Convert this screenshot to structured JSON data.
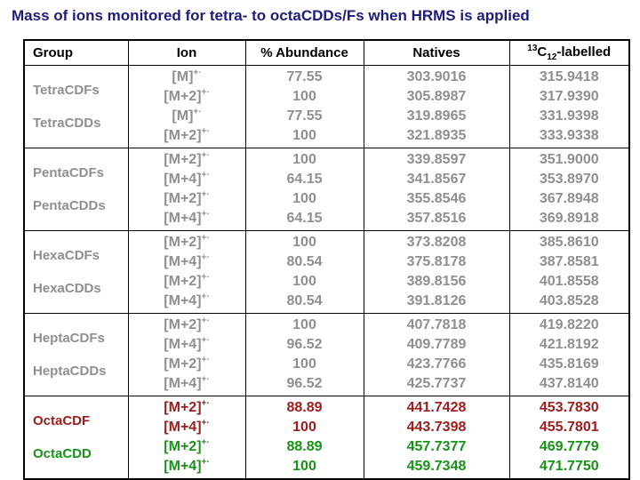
{
  "slide": {
    "title": "Mass of ions monitored for tetra- to octaCDDs/Fs when HRMS is applied"
  },
  "colors": {
    "title": "#1e1e7a",
    "header_text": "#000000",
    "border": "#000000",
    "background": "#ffffff",
    "gray": "#8f8f8f",
    "red": "#9e1b1b",
    "green": "#169416"
  },
  "table": {
    "headers": [
      {
        "align": "left",
        "parts": [
          {
            "t": "Group"
          }
        ]
      },
      {
        "align": "center",
        "parts": [
          {
            "t": "Ion"
          }
        ]
      },
      {
        "align": "center",
        "parts": [
          {
            "t": "% Abundance"
          }
        ]
      },
      {
        "align": "center",
        "parts": [
          {
            "t": "Natives"
          }
        ]
      },
      {
        "align": "center",
        "parts": [
          {
            "t": "13",
            "style": "sup"
          },
          {
            "t": "C"
          },
          {
            "t": "12",
            "style": "sub"
          },
          {
            "t": "-labelled"
          }
        ]
      }
    ],
    "groups": [
      {
        "labels": [
          {
            "text": "TetraCDFs",
            "color": "gray"
          },
          {
            "text": "TetraCDDs",
            "color": "gray"
          }
        ],
        "rows": [
          {
            "ion": "[M]",
            "sup": "+·",
            "abundance": "77.55",
            "native": "303.9016",
            "labelled": "315.9418",
            "color": "gray"
          },
          {
            "ion": "[M+2]",
            "sup": "+·",
            "abundance": "100",
            "native": "305.8987",
            "labelled": "317.9390",
            "color": "gray"
          },
          {
            "ion": "[M]",
            "sup": "+·",
            "abundance": "77.55",
            "native": "319.8965",
            "labelled": "331.9398",
            "color": "gray"
          },
          {
            "ion": "[M+2]",
            "sup": "+·",
            "abundance": "100",
            "native": "321.8935",
            "labelled": "333.9338",
            "color": "gray"
          }
        ]
      },
      {
        "labels": [
          {
            "text": "PentaCDFs",
            "color": "gray"
          },
          {
            "text": "PentaCDDs",
            "color": "gray"
          }
        ],
        "rows": [
          {
            "ion": "[M+2]",
            "sup": "+·",
            "abundance": "100",
            "native": "339.8597",
            "labelled": "351.9000",
            "color": "gray"
          },
          {
            "ion": "[M+4]",
            "sup": "+·",
            "abundance": "64.15",
            "native": "341.8567",
            "labelled": "353.8970",
            "color": "gray"
          },
          {
            "ion": "[M+2]",
            "sup": "+·",
            "abundance": "100",
            "native": "355.8546",
            "labelled": "367.8948",
            "color": "gray"
          },
          {
            "ion": "[M+4]",
            "sup": "+·",
            "abundance": "64.15",
            "native": "357.8516",
            "labelled": "369.8918",
            "color": "gray"
          }
        ]
      },
      {
        "labels": [
          {
            "text": "HexaCDFs",
            "color": "gray"
          },
          {
            "text": "HexaCDDs",
            "color": "gray"
          }
        ],
        "rows": [
          {
            "ion": "[M+2]",
            "sup": "+·",
            "abundance": "100",
            "native": "373.8208",
            "labelled": "385.8610",
            "color": "gray"
          },
          {
            "ion": "[M+4]",
            "sup": "+·",
            "abundance": "80.54",
            "native": "375.8178",
            "labelled": "387.8581",
            "color": "gray"
          },
          {
            "ion": "[M+2]",
            "sup": "+·",
            "abundance": "100",
            "native": "389.8156",
            "labelled": "401.8558",
            "color": "gray"
          },
          {
            "ion": "[M+4]",
            "sup": "+·",
            "abundance": "80.54",
            "native": "391.8126",
            "labelled": "403.8528",
            "color": "gray"
          }
        ]
      },
      {
        "labels": [
          {
            "text": "HeptaCDFs",
            "color": "gray"
          },
          {
            "text": "HeptaCDDs",
            "color": "gray"
          }
        ],
        "rows": [
          {
            "ion": "[M+2]",
            "sup": "+·",
            "abundance": "100",
            "native": "407.7818",
            "labelled": "419.8220",
            "color": "gray"
          },
          {
            "ion": "[M+4]",
            "sup": "+·",
            "abundance": "96.52",
            "native": "409.7789",
            "labelled": "421.8192",
            "color": "gray"
          },
          {
            "ion": "[M+2]",
            "sup": "+·",
            "abundance": "100",
            "native": "423.7766",
            "labelled": "435.8169",
            "color": "gray"
          },
          {
            "ion": "[M+4]",
            "sup": "+·",
            "abundance": "96.52",
            "native": "425.7737",
            "labelled": "437.8140",
            "color": "gray"
          }
        ]
      },
      {
        "labels": [
          {
            "text": "OctaCDF",
            "color": "red"
          },
          {
            "text": "OctaCDD",
            "color": "green"
          }
        ],
        "rows": [
          {
            "ion": "[M+2]",
            "sup": "+·",
            "abundance": "88.89",
            "native": "441.7428",
            "labelled": "453.7830",
            "color": "red"
          },
          {
            "ion": "[M+4]",
            "sup": "+·",
            "abundance": "100",
            "native": "443.7398",
            "labelled": "455.7801",
            "color": "red"
          },
          {
            "ion": "[M+2]",
            "sup": "+·",
            "abundance": "88.89",
            "native": "457.7377",
            "labelled": "469.7779",
            "color": "green"
          },
          {
            "ion": "[M+4]",
            "sup": "+·",
            "abundance": "100",
            "native": "459.7348",
            "labelled": "471.7750",
            "color": "green"
          }
        ]
      }
    ]
  }
}
